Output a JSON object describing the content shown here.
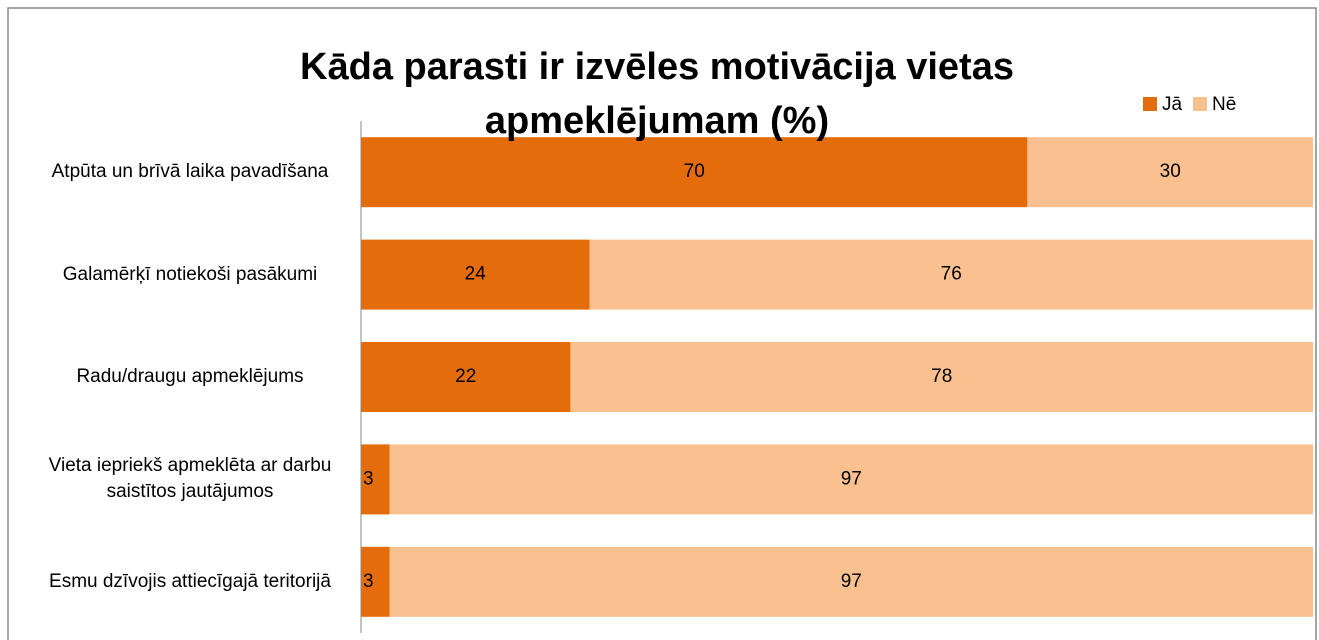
{
  "chart_data": {
    "type": "stacked_bar_horizontal",
    "title": "Kāda parasti ir izvēles motivācija vietas apmeklējumam (%)",
    "categories": [
      "Atpūta un brīvā laika pavadīšana",
      "Galamērķī notiekoši pasākumi",
      "Radu/draugu apmeklējums",
      "Vieta iepriekš apmeklēta ar darbu saistītos jautājumos",
      "Esmu dzīvojis attiecīgajā teritorijā"
    ],
    "series": [
      {
        "name": "Jā",
        "color": "#e46c0a",
        "values": [
          70,
          24,
          22,
          3,
          3
        ]
      },
      {
        "name": "Nē",
        "color": "#fac090",
        "values": [
          30,
          76,
          78,
          97,
          97
        ]
      }
    ],
    "xlim": [
      0,
      100
    ],
    "legend": "top-right"
  }
}
